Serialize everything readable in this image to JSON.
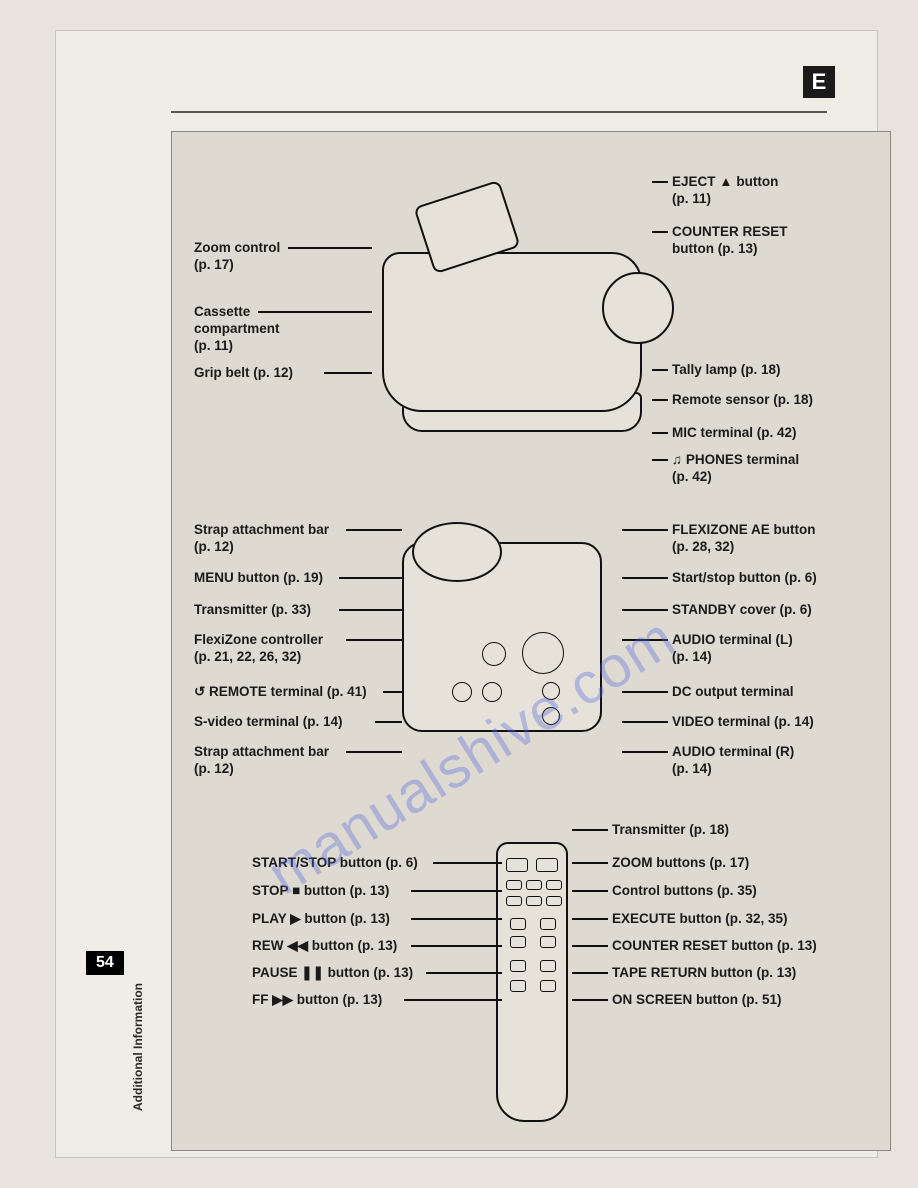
{
  "page": {
    "number": "54",
    "section": "Additional Information",
    "lang_marker": "E"
  },
  "watermark": "manualshive.com",
  "fig1": {
    "left": [
      {
        "t": "Zoom control\n(p. 17)"
      },
      {
        "t": "Cassette\ncompartment\n(p. 11)"
      },
      {
        "t": "Grip belt (p. 12)"
      }
    ],
    "right": [
      {
        "t": "EJECT ▲ button\n(p. 11)"
      },
      {
        "t": "COUNTER RESET\nbutton (p. 13)"
      },
      {
        "t": "Tally lamp (p. 18)"
      },
      {
        "t": "Remote sensor (p. 18)"
      },
      {
        "t": "MIC terminal (p. 42)"
      },
      {
        "t": "♫ PHONES terminal\n(p. 42)"
      }
    ]
  },
  "fig2": {
    "left": [
      {
        "t": "Strap attachment bar\n(p. 12)"
      },
      {
        "t": "MENU button (p. 19)"
      },
      {
        "t": "Transmitter (p. 33)"
      },
      {
        "t": "FlexiZone controller\n(p. 21, 22, 26, 32)"
      },
      {
        "t": "↺ REMOTE terminal (p. 41)"
      },
      {
        "t": "S-video terminal (p. 14)"
      },
      {
        "t": "Strap attachment bar\n(p. 12)"
      }
    ],
    "right": [
      {
        "t": "FLEXIZONE AE button\n(p. 28, 32)"
      },
      {
        "t": "Start/stop button (p. 6)"
      },
      {
        "t": "STANDBY cover (p. 6)"
      },
      {
        "t": "AUDIO terminal (L)\n(p. 14)"
      },
      {
        "t": "DC output terminal"
      },
      {
        "t": "VIDEO terminal (p. 14)"
      },
      {
        "t": "AUDIO terminal (R)\n(p. 14)"
      }
    ]
  },
  "fig3": {
    "left": [
      {
        "t": "START/STOP button (p. 6)"
      },
      {
        "t": "STOP ■ button (p. 13)"
      },
      {
        "t": "PLAY ▶ button (p. 13)"
      },
      {
        "t": "REW ◀◀ button (p. 13)"
      },
      {
        "t": "PAUSE ❚❚ button (p. 13)"
      },
      {
        "t": "FF ▶▶ button (p. 13)"
      }
    ],
    "right": [
      {
        "t": "Transmitter (p. 18)"
      },
      {
        "t": "ZOOM buttons (p. 17)"
      },
      {
        "t": "Control buttons (p. 35)"
      },
      {
        "t": "EXECUTE button (p. 32, 35)"
      },
      {
        "t": "COUNTER RESET button (p. 13)"
      },
      {
        "t": "TAPE RETURN button (p. 13)"
      },
      {
        "t": "ON SCREEN button (p. 51)"
      }
    ]
  },
  "layout": {
    "fig1_left_y": [
      108,
      172,
      233
    ],
    "fig1_right_y": [
      42,
      92,
      230,
      260,
      293,
      320
    ],
    "fig2_left_y": [
      390,
      438,
      470,
      500,
      552,
      582,
      612
    ],
    "fig2_right_y": [
      390,
      438,
      470,
      500,
      552,
      582,
      612
    ],
    "fig3_left_y": [
      723,
      751,
      779,
      806,
      833,
      860
    ],
    "fig3_right_y": [
      690,
      723,
      751,
      779,
      806,
      833,
      860
    ]
  },
  "colors": {
    "text": "#1a1a1a",
    "line": "#111111",
    "page_bg": "#f0ede6",
    "panel": "#dedad2"
  }
}
